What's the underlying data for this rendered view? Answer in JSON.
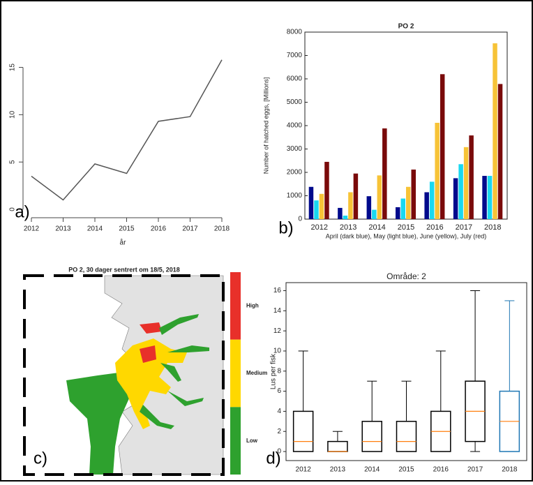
{
  "chart_data": [
    {
      "type": "line",
      "panel_label": "a)",
      "x_label": "år",
      "x": [
        2012,
        2013,
        2014,
        2015,
        2016,
        2017,
        2018
      ],
      "values": [
        3.5,
        1.0,
        4.8,
        3.8,
        9.3,
        9.8,
        15.8
      ],
      "color": "#555555",
      "xlim": [
        2012,
        2018
      ],
      "xticks": [
        2012,
        2013,
        2014,
        2015,
        2016,
        2017,
        2018
      ],
      "ylim": [
        0,
        16
      ],
      "yticks": [
        0,
        5,
        10,
        15
      ]
    },
    {
      "type": "bar",
      "panel_label": "b)",
      "title": "PO 2",
      "y_label": "Number of hatched eggs, [Millions]",
      "x_label": "April (dark blue), May (light blue), June (yellow), July (red)",
      "categories": [
        "2012",
        "2013",
        "2014",
        "2015",
        "2016",
        "2017",
        "2018"
      ],
      "series": [
        {
          "color": "#000a8c",
          "values": [
            1380,
            480,
            980,
            510,
            1150,
            1750,
            1850
          ]
        },
        {
          "color": "#19d8f0",
          "values": [
            800,
            150,
            400,
            880,
            1600,
            2350,
            1850
          ]
        },
        {
          "color": "#f7c337",
          "values": [
            1080,
            1150,
            1870,
            1380,
            4120,
            3080,
            7520
          ]
        },
        {
          "color": "#7a0a0a",
          "values": [
            2450,
            1950,
            3880,
            2120,
            6200,
            3580,
            5780
          ]
        }
      ],
      "ylim": [
        0,
        8000
      ],
      "yticks": [
        0,
        1000,
        2000,
        3000,
        4000,
        5000,
        6000,
        7000,
        8000
      ]
    },
    {
      "type": "map",
      "panel_label": "c)",
      "title": "PO 2, 30 dager sentrert om 18/5, 2018",
      "legend_labels": [
        "High",
        "Medium",
        "Low"
      ],
      "colors": [
        "#e8302a",
        "#ffd800",
        "#2ea12e"
      ]
    },
    {
      "type": "box",
      "panel_label": "d)",
      "title": "Område: 2",
      "y_label": "Lus per fisk",
      "categories": [
        "2012",
        "2013",
        "2014",
        "2015",
        "2016",
        "2017",
        "2018"
      ],
      "boxes": [
        {
          "whislo": 0,
          "q1": 0,
          "med": 1,
          "q3": 4,
          "whishi": 10
        },
        {
          "whislo": 0,
          "q1": 0,
          "med": 0,
          "q3": 1,
          "whishi": 2
        },
        {
          "whislo": 0,
          "q1": 0,
          "med": 1,
          "q3": 3,
          "whishi": 7
        },
        {
          "whislo": 0,
          "q1": 0,
          "med": 1,
          "q3": 3,
          "whishi": 7
        },
        {
          "whislo": 0,
          "q1": 0,
          "med": 2,
          "q3": 4,
          "whishi": 10
        },
        {
          "whislo": 0,
          "q1": 1,
          "med": 4,
          "q3": 7,
          "whishi": 16
        },
        {
          "whislo": 0,
          "q1": 0,
          "med": 3,
          "q3": 6,
          "whishi": 15
        }
      ],
      "colors": [
        "#000000",
        "#000000",
        "#000000",
        "#000000",
        "#000000",
        "#000000",
        "#1f77b4"
      ],
      "median_color": "#ff7f0e",
      "ylim": [
        -0.9,
        16.8
      ],
      "yticks": [
        0,
        2,
        4,
        6,
        8,
        10,
        12,
        14,
        16
      ]
    }
  ]
}
